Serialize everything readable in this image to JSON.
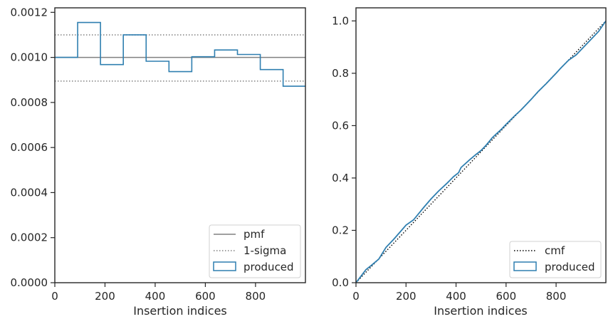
{
  "chart_data": [
    {
      "type": "histogram-step",
      "xlabel": "Insertion indices",
      "ylabel": "",
      "xlim": [
        0,
        999
      ],
      "ylim": [
        0,
        0.00122
      ],
      "x_ticks": [
        0,
        200,
        400,
        600,
        800
      ],
      "x_tick_labels": [
        "0",
        "200",
        "400",
        "600",
        "800"
      ],
      "y_ticks": [
        0,
        0.0002,
        0.0004,
        0.0006,
        0.0008,
        0.001,
        0.0012
      ],
      "y_tick_labels": [
        "0.0000",
        "0.0002",
        "0.0004",
        "0.0006",
        "0.0008",
        "0.0010",
        "0.0012"
      ],
      "grid": false,
      "legend_position": "lower right",
      "reference_lines": [
        {
          "name": "pmf",
          "value": 0.001,
          "style": "solid",
          "color": "#808080"
        },
        {
          "name": "1-sigma",
          "values": [
            0.0011,
            0.000895
          ],
          "style": "dotted",
          "color": "#808080"
        }
      ],
      "series": [
        {
          "name": "produced",
          "color": "#2f7fb0",
          "bin_edges": [
            0,
            91,
            182,
            273,
            364,
            455,
            546,
            637,
            728,
            819,
            910,
            999
          ],
          "values": [
            0.001,
            0.001155,
            0.000968,
            0.0011,
            0.000983,
            0.000937,
            0.001003,
            0.001033,
            0.001013,
            0.000946,
            0.000872
          ]
        }
      ],
      "legend": [
        {
          "label": "pmf",
          "style": "solid-line"
        },
        {
          "label": "1-sigma",
          "style": "dotted-line"
        },
        {
          "label": "produced",
          "style": "box"
        }
      ]
    },
    {
      "type": "line",
      "xlabel": "Insertion indices",
      "ylabel": "",
      "xlim": [
        0,
        999
      ],
      "ylim": [
        0,
        1.05
      ],
      "x_ticks": [
        0,
        200,
        400,
        600,
        800
      ],
      "x_tick_labels": [
        "0",
        "200",
        "400",
        "600",
        "800"
      ],
      "y_ticks": [
        0,
        0.2,
        0.4,
        0.6,
        0.8,
        1.0
      ],
      "y_tick_labels": [
        "0.0",
        "0.2",
        "0.4",
        "0.6",
        "0.8",
        "1.0"
      ],
      "grid": false,
      "legend_position": "lower right",
      "series": [
        {
          "name": "cmf",
          "style": "dotted",
          "color": "#000000",
          "x": [
            0,
            999
          ],
          "y": [
            0,
            1.0
          ]
        },
        {
          "name": "produced",
          "style": "solid",
          "color": "#2f7fb0",
          "x": [
            0,
            20,
            40,
            60,
            91,
            120,
            150,
            182,
            200,
            230,
            273,
            300,
            330,
            364,
            390,
            410,
            420,
            455,
            480,
            500,
            520,
            546,
            580,
            600,
            637,
            660,
            700,
            728,
            760,
            800,
            819,
            850,
            880,
            910,
            940,
            970,
            999
          ],
          "y": [
            0,
            0.025,
            0.05,
            0.065,
            0.09,
            0.135,
            0.165,
            0.2,
            0.22,
            0.24,
            0.29,
            0.32,
            0.35,
            0.38,
            0.405,
            0.42,
            0.44,
            0.47,
            0.49,
            0.505,
            0.525,
            0.555,
            0.585,
            0.605,
            0.64,
            0.66,
            0.7,
            0.73,
            0.76,
            0.8,
            0.82,
            0.85,
            0.87,
            0.9,
            0.93,
            0.96,
            1.0
          ]
        }
      ],
      "legend": [
        {
          "label": "cmf",
          "style": "dotted-line"
        },
        {
          "label": "produced",
          "style": "box"
        }
      ]
    }
  ]
}
